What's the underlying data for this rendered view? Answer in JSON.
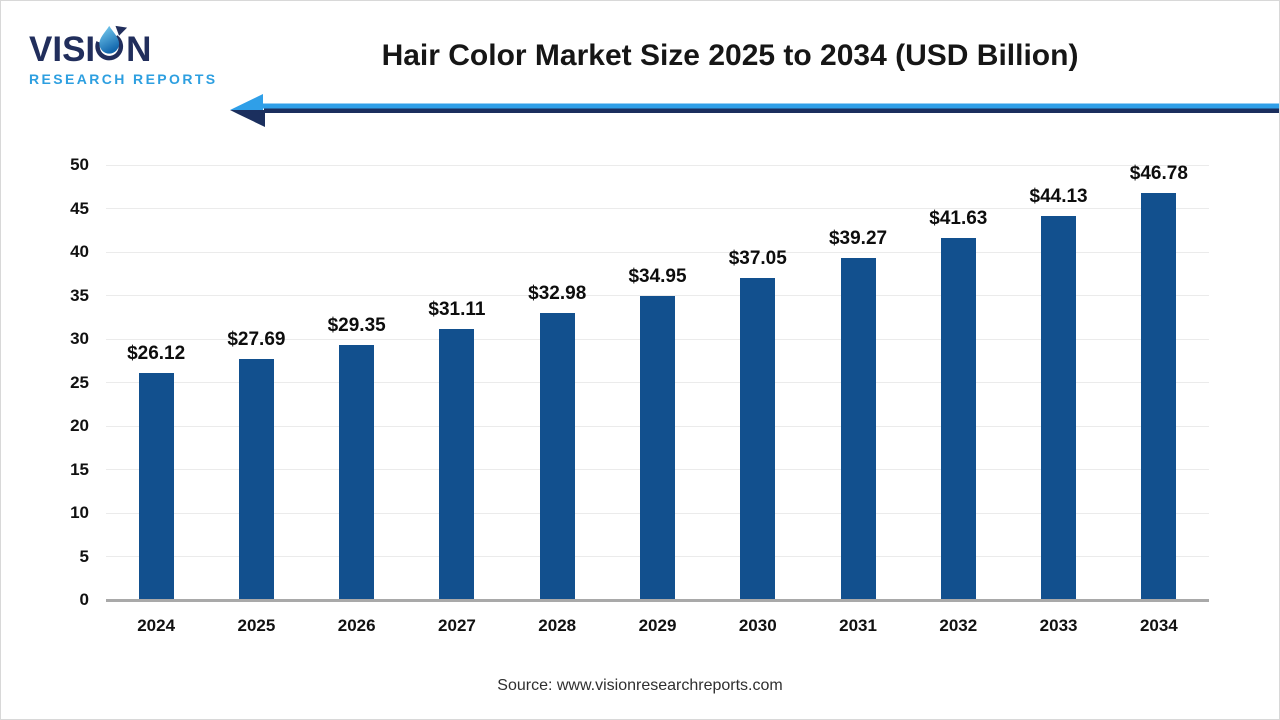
{
  "branding": {
    "logo_text_pre": "VISI",
    "logo_text_post": "N",
    "logo_subtext": "RESEARCH REPORTS",
    "navy": "#212e5c",
    "light_blue": "#2d9fe0"
  },
  "header": {
    "title": "Hair Color Market Size 2025 to 2034 (USD Billion)"
  },
  "decor": {
    "arrow_light_blue": "#2f9fe8",
    "arrow_navy": "#1b2f5e"
  },
  "chart_data": {
    "type": "bar",
    "title": "Hair Color Market Size 2025 to 2034 (USD Billion)",
    "categories": [
      "2024",
      "2025",
      "2026",
      "2027",
      "2028",
      "2029",
      "2030",
      "2031",
      "2032",
      "2033",
      "2034"
    ],
    "values": [
      26.12,
      27.69,
      29.35,
      31.11,
      32.98,
      34.95,
      37.05,
      39.27,
      41.63,
      44.13,
      46.78
    ],
    "data_labels": [
      "$26.12",
      "$27.69",
      "$29.35",
      "$31.11",
      "$32.98",
      "$34.95",
      "$37.05",
      "$39.27",
      "$41.63",
      "$44.13",
      "$46.78"
    ],
    "bar_color": "#12508E",
    "ylim": [
      0,
      50
    ],
    "ytick_step": 5,
    "grid": true,
    "gridline_color": "#ebebeb",
    "axis_line_color": "#a9a9a9",
    "legend": "none",
    "xlabel": "",
    "ylabel": ""
  },
  "footer": {
    "source": "Source: www.visionresearchreports.com"
  }
}
